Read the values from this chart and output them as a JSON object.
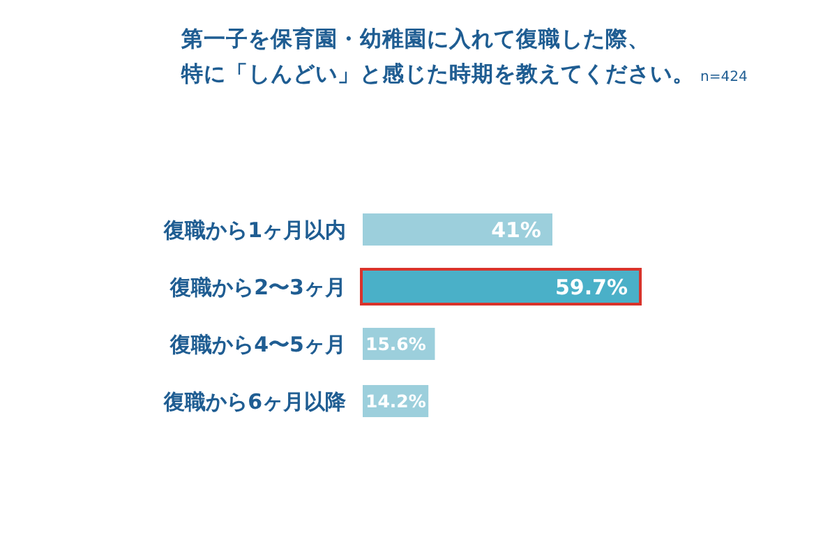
{
  "chart_data": {
    "type": "bar",
    "orientation": "horizontal",
    "title": "第一子を保育園・幼稚園に入れて復職した際、特に「しんどい」と感じた時期を教えてください。",
    "annotations": [
      "n=424"
    ],
    "categories": [
      "復職から1ヶ月以内",
      "復職から2〜3ヶ月",
      "復職から4〜5ヶ月",
      "復職から6ヶ月以降"
    ],
    "values": [
      41,
      59.7,
      15.6,
      14.2
    ],
    "colors": [
      "#9ccfdc",
      "#4ab0c8",
      "#9ccfdc",
      "#9ccfdc"
    ],
    "value_labels": [
      "41%",
      "59.7%",
      "15.6%",
      "14.2%"
    ],
    "grid": false,
    "legend": false
  }
}
